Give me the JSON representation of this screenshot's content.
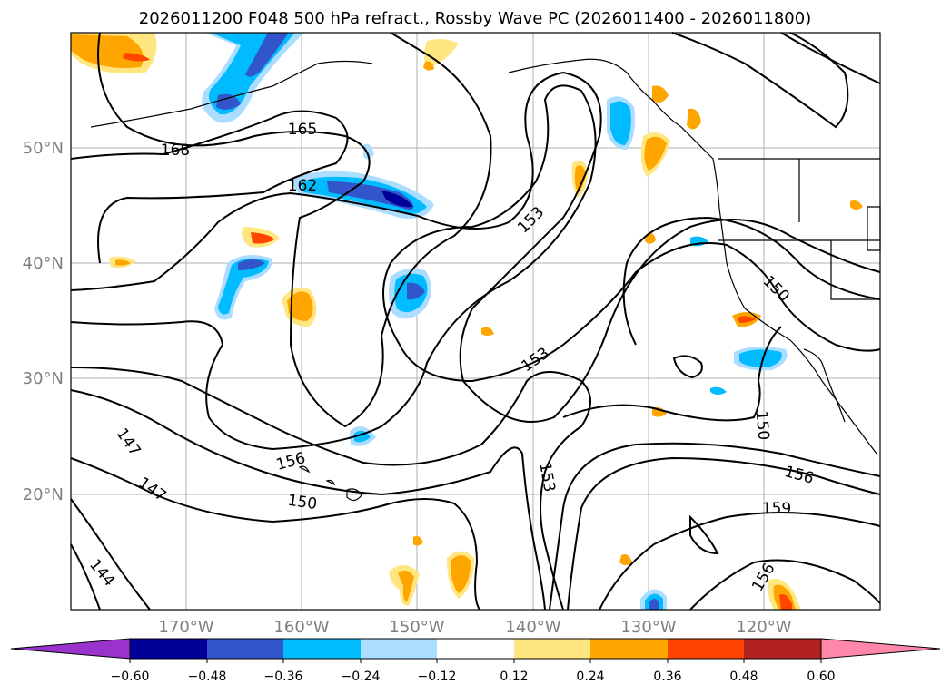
{
  "title": "2026011200 F048 500 hPa refract., Rossby Wave PC (2026011400 - 2026011800)",
  "map": {
    "lat_labels": [
      "50°N",
      "40°N",
      "30°N",
      "20°N"
    ],
    "lon_labels": [
      "170°W",
      "160°W",
      "150°W",
      "140°W",
      "130°W",
      "120°W"
    ],
    "contour_labels": [
      "168",
      "165",
      "162",
      "153",
      "153",
      "150",
      "150",
      "147",
      "147",
      "144",
      "156",
      "150",
      "153",
      "156",
      "159",
      "156"
    ]
  },
  "colorbar": {
    "ticks": [
      "−0.60",
      "−0.48",
      "−0.36",
      "−0.24",
      "−0.12",
      "0.12",
      "0.24",
      "0.36",
      "0.48",
      "0.60"
    ],
    "colors": [
      "#9933cc",
      "#000099",
      "#3355cc",
      "#00bbff",
      "#aaddff",
      "#ffffff",
      "#ffe680",
      "#ffa500",
      "#ff4500",
      "#b22222",
      "#ff88aa"
    ]
  }
}
